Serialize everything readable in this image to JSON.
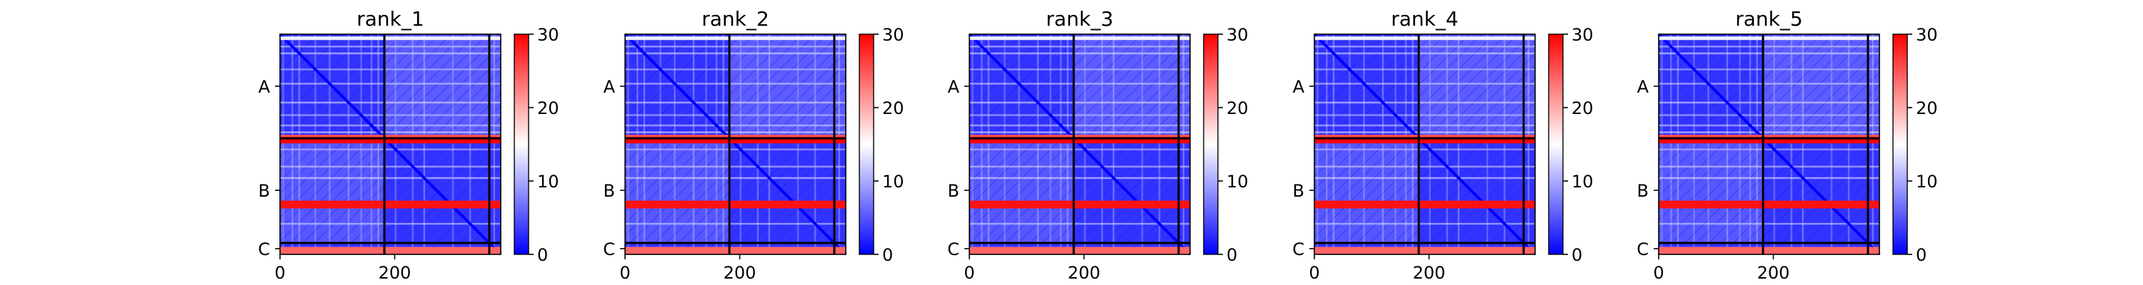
{
  "chart_data": {
    "type": "heatmap",
    "colormap": {
      "name": "bwr",
      "low": "#0000ff",
      "mid": "#ffffff",
      "high": "#ff0000",
      "vmin": 0,
      "vmax": 30
    },
    "colorbar_ticks": [
      0,
      10,
      20,
      30
    ],
    "colorbar_tick_labels": [
      "0",
      "10",
      "20",
      "30"
    ],
    "x_ticks": [
      0,
      200
    ],
    "x_tick_labels": [
      "0",
      "200"
    ],
    "axis_range": [
      0,
      385
    ],
    "chain_boundaries": [
      182,
      365
    ],
    "chain_labels": [
      {
        "label": "A",
        "position": 91
      },
      {
        "label": "B",
        "position": 273
      },
      {
        "label": "C",
        "position": 375
      }
    ],
    "panels": [
      {
        "title": "rank_1"
      },
      {
        "title": "rank_2"
      },
      {
        "title": "rank_3"
      },
      {
        "title": "rank_4"
      },
      {
        "title": "rank_5"
      }
    ]
  }
}
